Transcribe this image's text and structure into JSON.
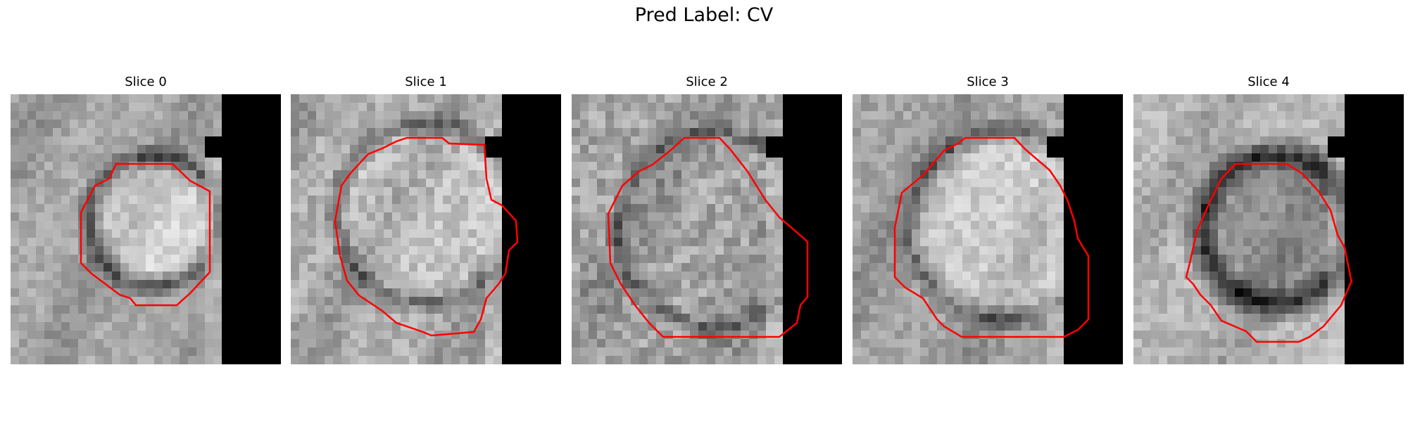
{
  "title": "Pred Label: CV",
  "colors": {
    "contour": "#ff0000",
    "mask": "#000000",
    "background": "#ffffff"
  },
  "slices": [
    {
      "label": "Slice 0",
      "pattern": "blob"
    },
    {
      "label": "Slice 1",
      "pattern": "irregular"
    },
    {
      "label": "Slice 2",
      "pattern": "grainy"
    },
    {
      "label": "Slice 3",
      "pattern": "bright-center"
    },
    {
      "label": "Slice 4",
      "pattern": "dark-ring"
    }
  ]
}
